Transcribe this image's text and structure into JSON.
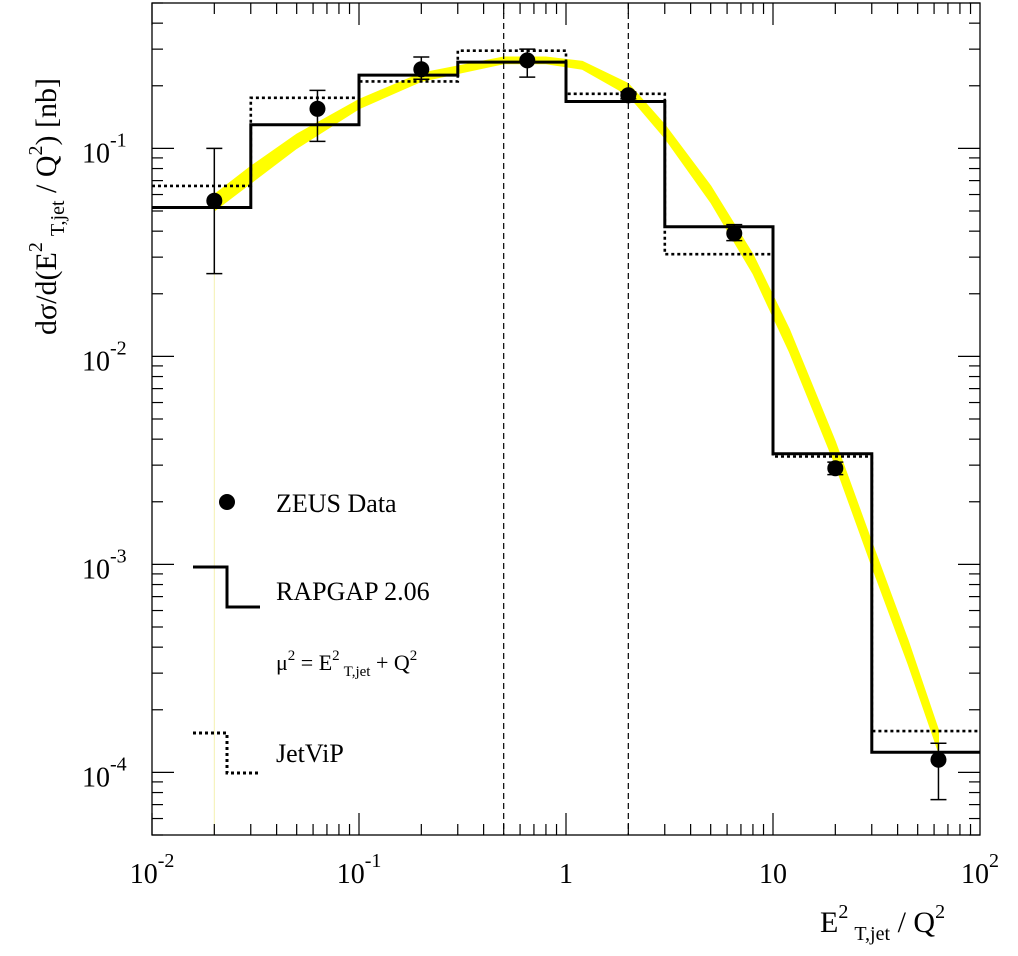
{
  "colors": {
    "band": "#ffff00",
    "ink": "#000000",
    "background": "#ffffff"
  },
  "chart_data": {
    "type": "line",
    "x_scale": "log",
    "y_scale": "log",
    "xlim": [
      0.01,
      100
    ],
    "ylim": [
      5e-05,
      0.5
    ],
    "grid": false,
    "legend_placement": "left",
    "ylabel": {
      "base": "dσ/d(E",
      "sup1": "2",
      "sub1": "T,jet",
      "mid": " / Q",
      "sup2": "2",
      "end": ") [nb]"
    },
    "xlabel": {
      "base": "E",
      "sup1": "2",
      "sub1": "T,jet",
      "mid": " / Q",
      "sup2": "2"
    },
    "x_ticks": [
      {
        "value": 0.01,
        "base": "10",
        "exp": "-2"
      },
      {
        "value": 0.1,
        "base": "10",
        "exp": "-1"
      },
      {
        "value": 1,
        "base": "1",
        "exp": ""
      },
      {
        "value": 10,
        "base": "10",
        "exp": ""
      },
      {
        "value": 100,
        "base": "10",
        "exp": "2"
      }
    ],
    "y_ticks": [
      {
        "value": 0.1,
        "base": "10",
        "exp": "-1"
      },
      {
        "value": 0.01,
        "base": "10",
        "exp": "-2"
      },
      {
        "value": 0.001,
        "base": "10",
        "exp": "-3"
      },
      {
        "value": 0.0001,
        "base": "10",
        "exp": "-4"
      }
    ],
    "cut_lines_x": [
      0.5,
      2
    ],
    "data_points": {
      "name": "ZEUS Data",
      "points": [
        {
          "x": 0.02,
          "y": 0.056,
          "ylo": 0.025,
          "yhi": 0.1
        },
        {
          "x": 0.063,
          "y": 0.155,
          "ylo": 0.108,
          "yhi": 0.19
        },
        {
          "x": 0.2,
          "y": 0.24,
          "ylo": 0.215,
          "yhi": 0.275
        },
        {
          "x": 0.65,
          "y": 0.265,
          "ylo": 0.22,
          "yhi": 0.3
        },
        {
          "x": 2.0,
          "y": 0.18,
          "ylo": 0.173,
          "yhi": 0.187
        },
        {
          "x": 6.5,
          "y": 0.039,
          "ylo": 0.036,
          "yhi": 0.043
        },
        {
          "x": 20,
          "y": 0.0029,
          "ylo": 0.0027,
          "yhi": 0.0031
        },
        {
          "x": 63,
          "y": 0.000115,
          "ylo": 7.4e-05,
          "yhi": 0.000138
        }
      ]
    },
    "rapgap": {
      "name": "RAPGAP 2.06",
      "bins": [
        {
          "lo": 0.01,
          "hi": 0.03,
          "y": 0.052
        },
        {
          "lo": 0.03,
          "hi": 0.1,
          "y": 0.13
        },
        {
          "lo": 0.1,
          "hi": 0.3,
          "y": 0.225
        },
        {
          "lo": 0.3,
          "hi": 1.0,
          "y": 0.26
        },
        {
          "lo": 1.0,
          "hi": 3.0,
          "y": 0.168
        },
        {
          "lo": 3.0,
          "hi": 10,
          "y": 0.042
        },
        {
          "lo": 10,
          "hi": 30,
          "y": 0.0034
        },
        {
          "lo": 30,
          "hi": 100,
          "y": 0.000125
        }
      ]
    },
    "jetvip": {
      "name": "JetViP",
      "bins": [
        {
          "lo": 0.01,
          "hi": 0.03,
          "y": 0.066
        },
        {
          "lo": 0.03,
          "hi": 0.1,
          "y": 0.175
        },
        {
          "lo": 0.1,
          "hi": 0.3,
          "y": 0.21
        },
        {
          "lo": 0.3,
          "hi": 1.0,
          "y": 0.295
        },
        {
          "lo": 1.0,
          "hi": 3.0,
          "y": 0.183
        },
        {
          "lo": 3.0,
          "hi": 10,
          "y": 0.031
        },
        {
          "lo": 10,
          "hi": 30,
          "y": 0.0033
        },
        {
          "lo": 30,
          "hi": 100,
          "y": 0.000158
        }
      ]
    },
    "band": {
      "x": [
        0.02,
        0.03,
        0.05,
        0.1,
        0.2,
        0.5,
        0.8,
        1.2,
        2.0,
        3.0,
        5.0,
        8.0,
        12,
        20,
        30,
        45,
        63
      ],
      "y_low": [
        0.05,
        0.068,
        0.1,
        0.155,
        0.21,
        0.255,
        0.255,
        0.24,
        0.18,
        0.112,
        0.055,
        0.025,
        0.0105,
        0.003,
        0.00098,
        0.00033,
        0.000125
      ],
      "y_high": [
        0.06,
        0.082,
        0.117,
        0.172,
        0.23,
        0.275,
        0.275,
        0.262,
        0.205,
        0.13,
        0.066,
        0.031,
        0.0135,
        0.0039,
        0.00128,
        0.00043,
        0.00016
      ]
    },
    "legend": {
      "data_label": "ZEUS Data",
      "rapgap_label": "RAPGAP 2.06",
      "scale": {
        "mu": "μ",
        "sup1": "2",
        "eq": " = E",
        "sup2": "2",
        "sub": "T,jet",
        "plus": " + Q",
        "sup3": "2"
      },
      "jetvip_label": "JetViP"
    }
  }
}
